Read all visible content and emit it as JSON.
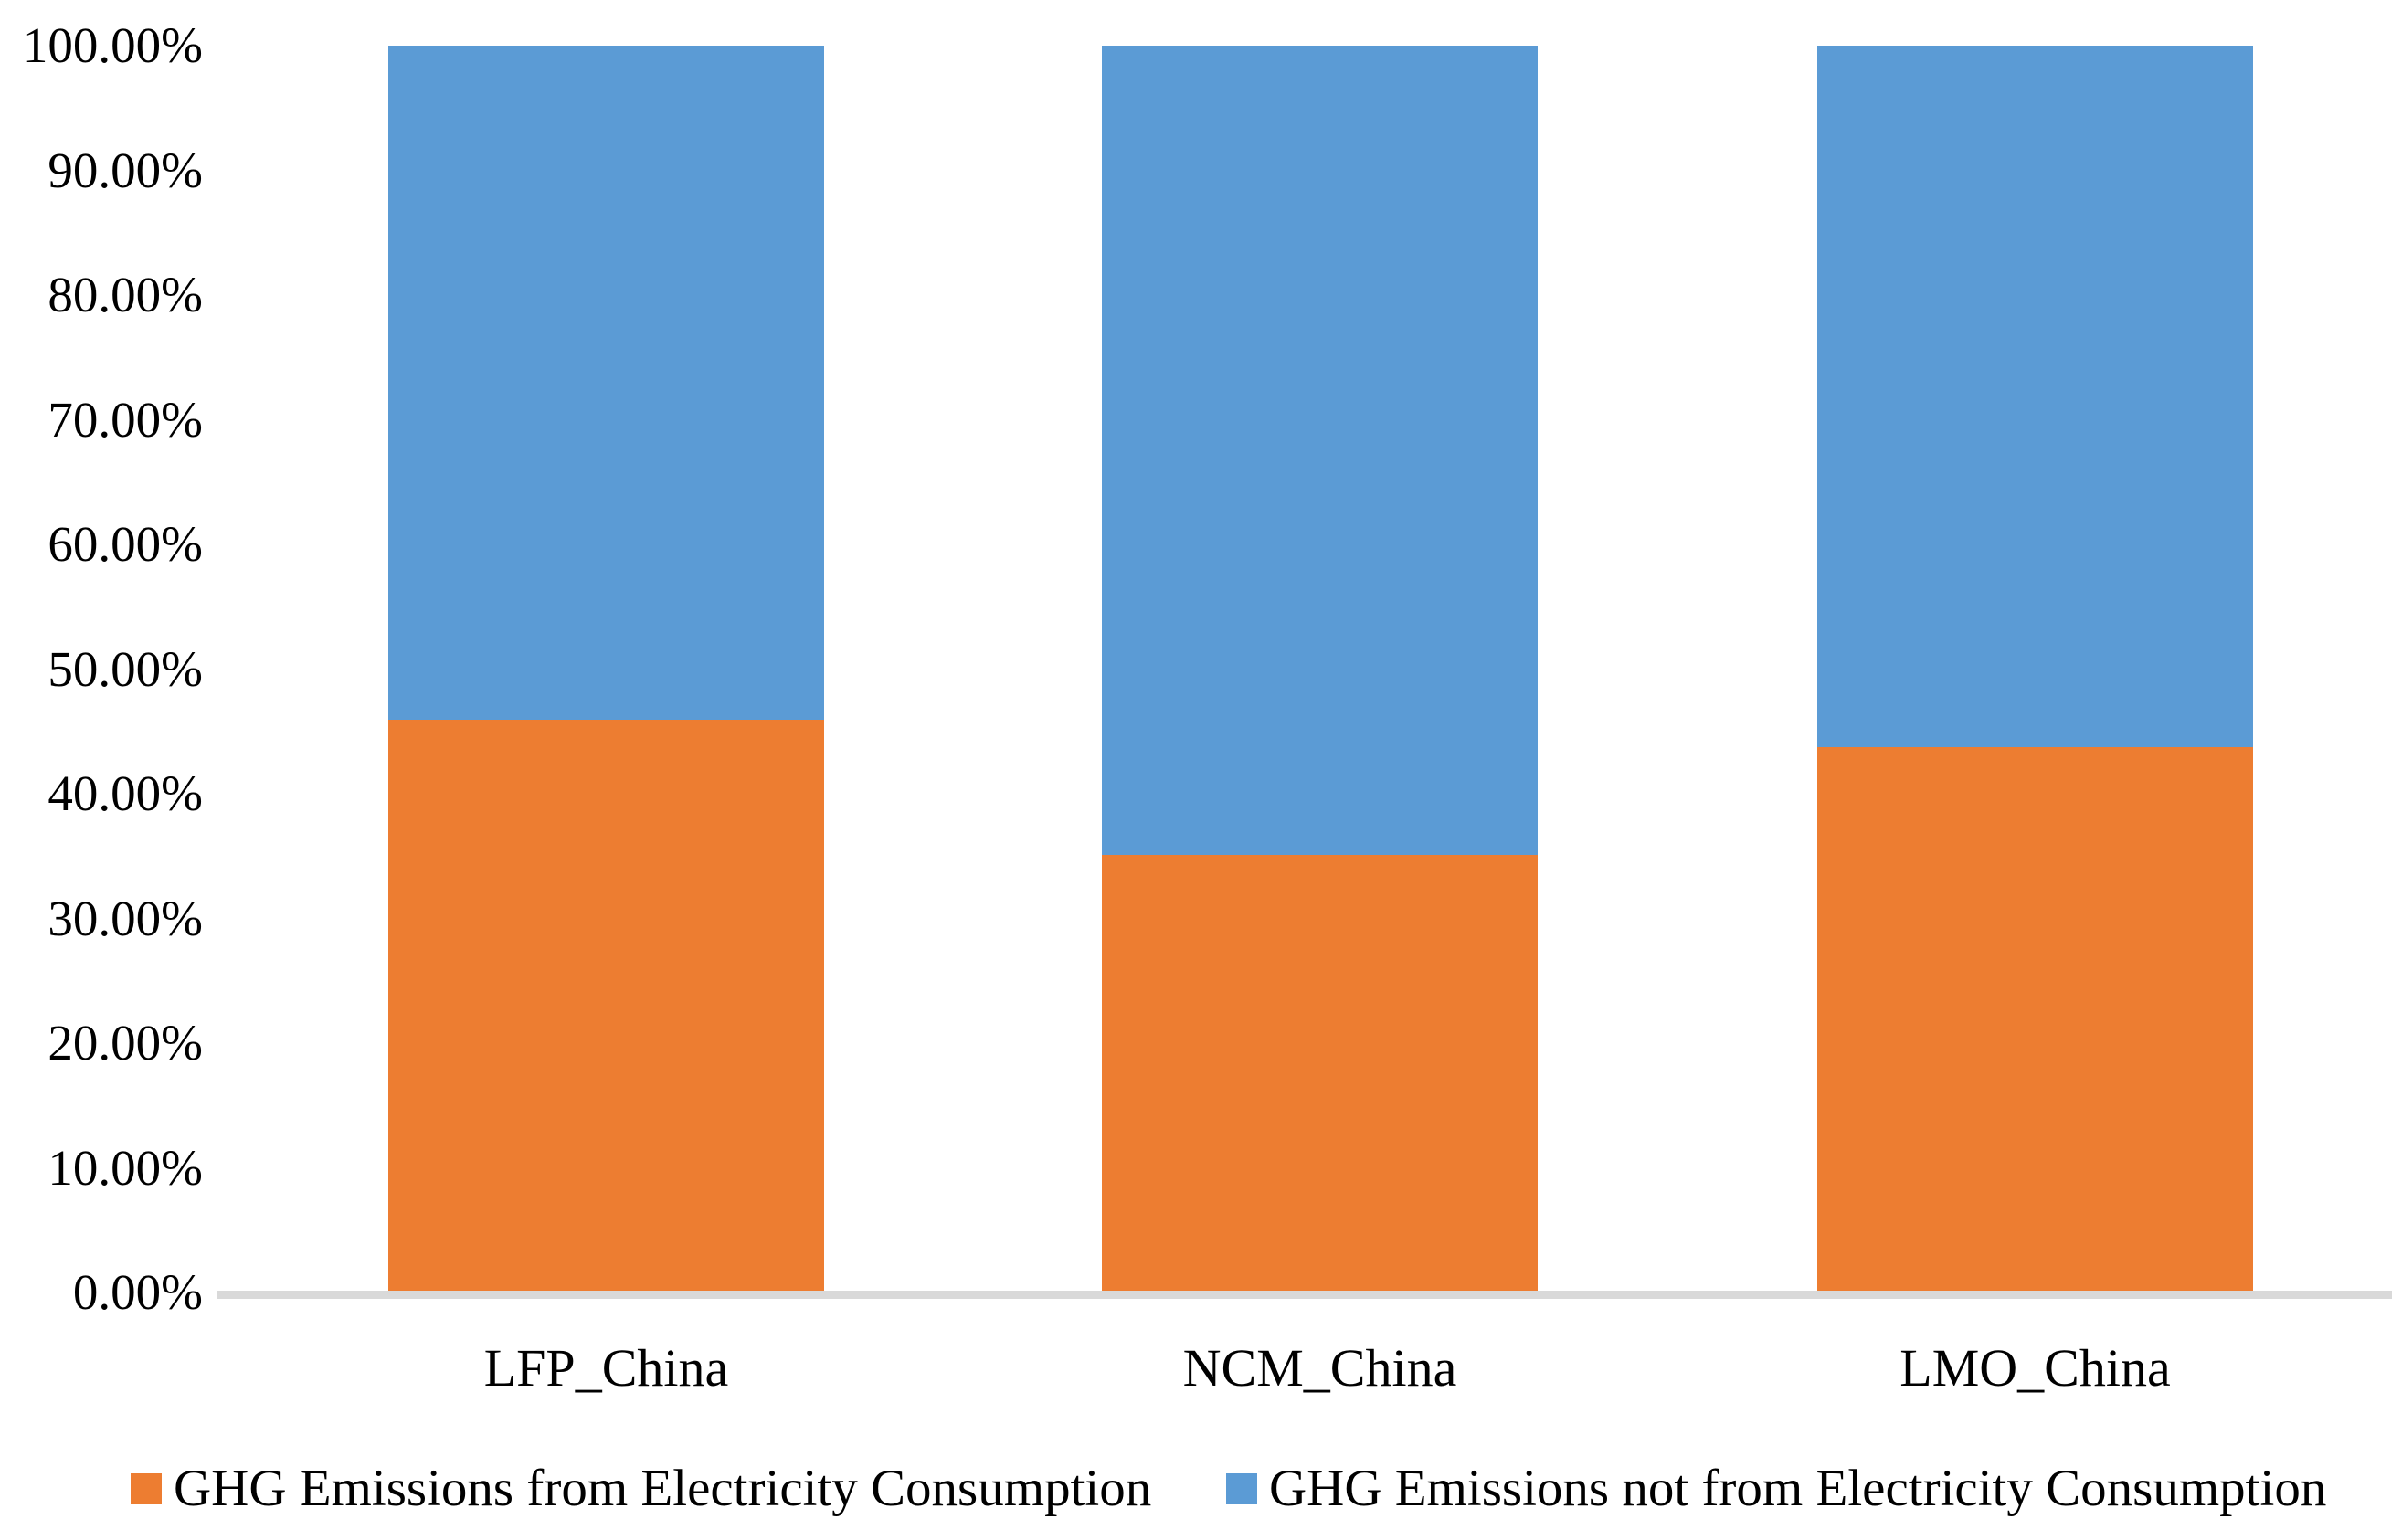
{
  "chart_data": {
    "type": "bar",
    "variant": "stacked-100-percent",
    "title": "",
    "xlabel": "",
    "ylabel": "",
    "categories": [
      "LFP_China",
      "NCM_China",
      "LMO_China"
    ],
    "series": [
      {
        "name": "GHG Emissions from Electricity Consumption",
        "color": "#ED7D31",
        "values": [
          45.9,
          35.1,
          43.7
        ]
      },
      {
        "name": "GHG Emissions not from Electricity Consumption",
        "color": "#5B9BD5",
        "values": [
          54.1,
          64.9,
          56.3
        ]
      }
    ],
    "y_axis": {
      "min": 0,
      "max": 100,
      "tick_step": 10,
      "tick_labels": [
        "0.00%",
        "10.00%",
        "20.00%",
        "30.00%",
        "40.00%",
        "50.00%",
        "60.00%",
        "70.00%",
        "80.00%",
        "90.00%",
        "100.00%"
      ]
    },
    "grid": false,
    "legend_position": "bottom"
  },
  "colors": {
    "background": "#FFFFFF",
    "axis_line": "#D9D9D9",
    "text": "#000000",
    "series_orange": "#ED7D31",
    "series_blue": "#5B9BD5"
  }
}
